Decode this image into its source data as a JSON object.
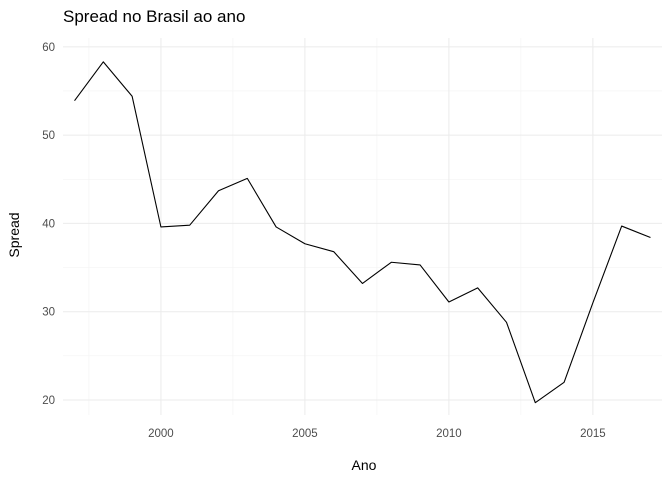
{
  "chart_data": {
    "type": "line",
    "title": "Spread no Brasil ao ano",
    "xlabel": "Ano",
    "ylabel": "Spread",
    "x": [
      1997,
      1998,
      1999,
      2000,
      2001,
      2002,
      2003,
      2004,
      2005,
      2006,
      2007,
      2008,
      2009,
      2010,
      2011,
      2012,
      2013,
      2014,
      2015,
      2016,
      2017
    ],
    "series": [
      {
        "values": [
          53.9,
          58.3,
          54.4,
          39.6,
          39.8,
          43.7,
          45.1,
          39.6,
          37.7,
          36.8,
          33.2,
          35.6,
          35.3,
          31.1,
          32.7,
          28.8,
          19.7,
          22.0,
          31.0,
          39.7,
          38.4
        ]
      }
    ],
    "xlim": [
      1996.6,
      2017.4
    ],
    "ylim": [
      18.3,
      61.0
    ],
    "x_ticks": [
      2000,
      2005,
      2010,
      2015
    ],
    "y_ticks": [
      20,
      30,
      40,
      50,
      60
    ],
    "grid": true,
    "legend": "none",
    "line_color": "#000000"
  }
}
